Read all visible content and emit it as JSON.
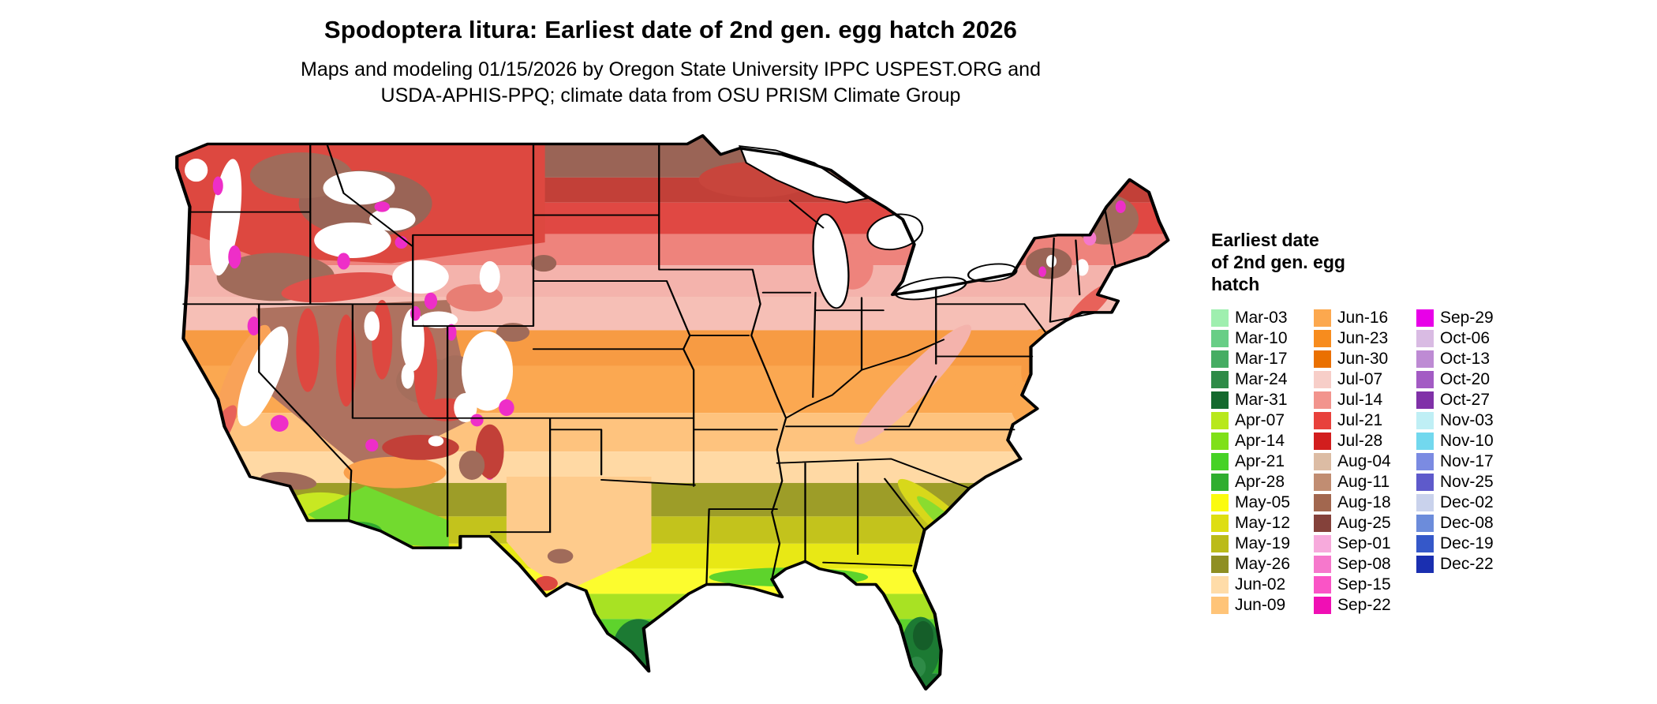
{
  "title": "Spodoptera litura: Earliest date of 2nd gen. egg hatch 2026",
  "subtitle_lines": [
    "Maps and modeling 01/15/2026 by Oregon State University IPPC USPEST.ORG and",
    "USDA-APHIS-PPQ; climate data from OSU PRISM Climate Group"
  ],
  "legend": {
    "title_lines": [
      "Earliest date",
      "of 2nd gen. egg",
      "hatch"
    ],
    "columns": [
      {
        "entries": [
          {
            "label": "Mar-03",
            "color": "#9FEFAF"
          },
          {
            "label": "Mar-10",
            "color": "#68CE86"
          },
          {
            "label": "Mar-17",
            "color": "#46AD63"
          },
          {
            "label": "Mar-24",
            "color": "#2E8B47"
          },
          {
            "label": "Mar-31",
            "color": "#14692E"
          },
          {
            "label": "Apr-07",
            "color": "#B8E81C"
          },
          {
            "label": "Apr-14",
            "color": "#7FE019"
          },
          {
            "label": "Apr-21",
            "color": "#46D226"
          },
          {
            "label": "Apr-28",
            "color": "#2FAE2F"
          },
          {
            "label": "May-05",
            "color": "#FBFB0F"
          },
          {
            "label": "May-12",
            "color": "#DEDE12"
          },
          {
            "label": "May-19",
            "color": "#BBBB19"
          },
          {
            "label": "May-26",
            "color": "#8F8F23"
          },
          {
            "label": "Jun-02",
            "color": "#FFDCA8"
          },
          {
            "label": "Jun-09",
            "color": "#FFC478"
          }
        ]
      },
      {
        "entries": [
          {
            "label": "Jun-16",
            "color": "#FCA84E"
          },
          {
            "label": "Jun-23",
            "color": "#F78C1E"
          },
          {
            "label": "Jun-30",
            "color": "#EA7000"
          },
          {
            "label": "Jul-07",
            "color": "#F7CEC8"
          },
          {
            "label": "Jul-14",
            "color": "#F2948D"
          },
          {
            "label": "Jul-21",
            "color": "#E8413C"
          },
          {
            "label": "Jul-28",
            "color": "#D21E1E"
          },
          {
            "label": "Aug-04",
            "color": "#DCBCA4"
          },
          {
            "label": "Aug-11",
            "color": "#C18D72"
          },
          {
            "label": "Aug-18",
            "color": "#A2674F"
          },
          {
            "label": "Aug-25",
            "color": "#84413A"
          },
          {
            "label": "Sep-01",
            "color": "#F7AADC"
          },
          {
            "label": "Sep-08",
            "color": "#F678CC"
          },
          {
            "label": "Sep-15",
            "color": "#FA54C6"
          },
          {
            "label": "Sep-22",
            "color": "#F00FB4"
          }
        ]
      },
      {
        "entries": [
          {
            "label": "Sep-29",
            "color": "#E800E8"
          },
          {
            "label": "Oct-06",
            "color": "#D9BBE3"
          },
          {
            "label": "Oct-13",
            "color": "#BE8BD4"
          },
          {
            "label": "Oct-20",
            "color": "#A35BC4"
          },
          {
            "label": "Oct-27",
            "color": "#8031A8"
          },
          {
            "label": "Nov-03",
            "color": "#BFEFF5"
          },
          {
            "label": "Nov-10",
            "color": "#72D8EE"
          },
          {
            "label": "Nov-17",
            "color": "#7B8BE2"
          },
          {
            "label": "Nov-25",
            "color": "#5E5ACB"
          },
          {
            "label": "Dec-02",
            "color": "#C9D2EC"
          },
          {
            "label": "Dec-08",
            "color": "#6C8CDB"
          },
          {
            "label": "Dec-19",
            "color": "#3558C9"
          },
          {
            "label": "Dec-22",
            "color": "#1A2FB0"
          }
        ]
      }
    ]
  }
}
